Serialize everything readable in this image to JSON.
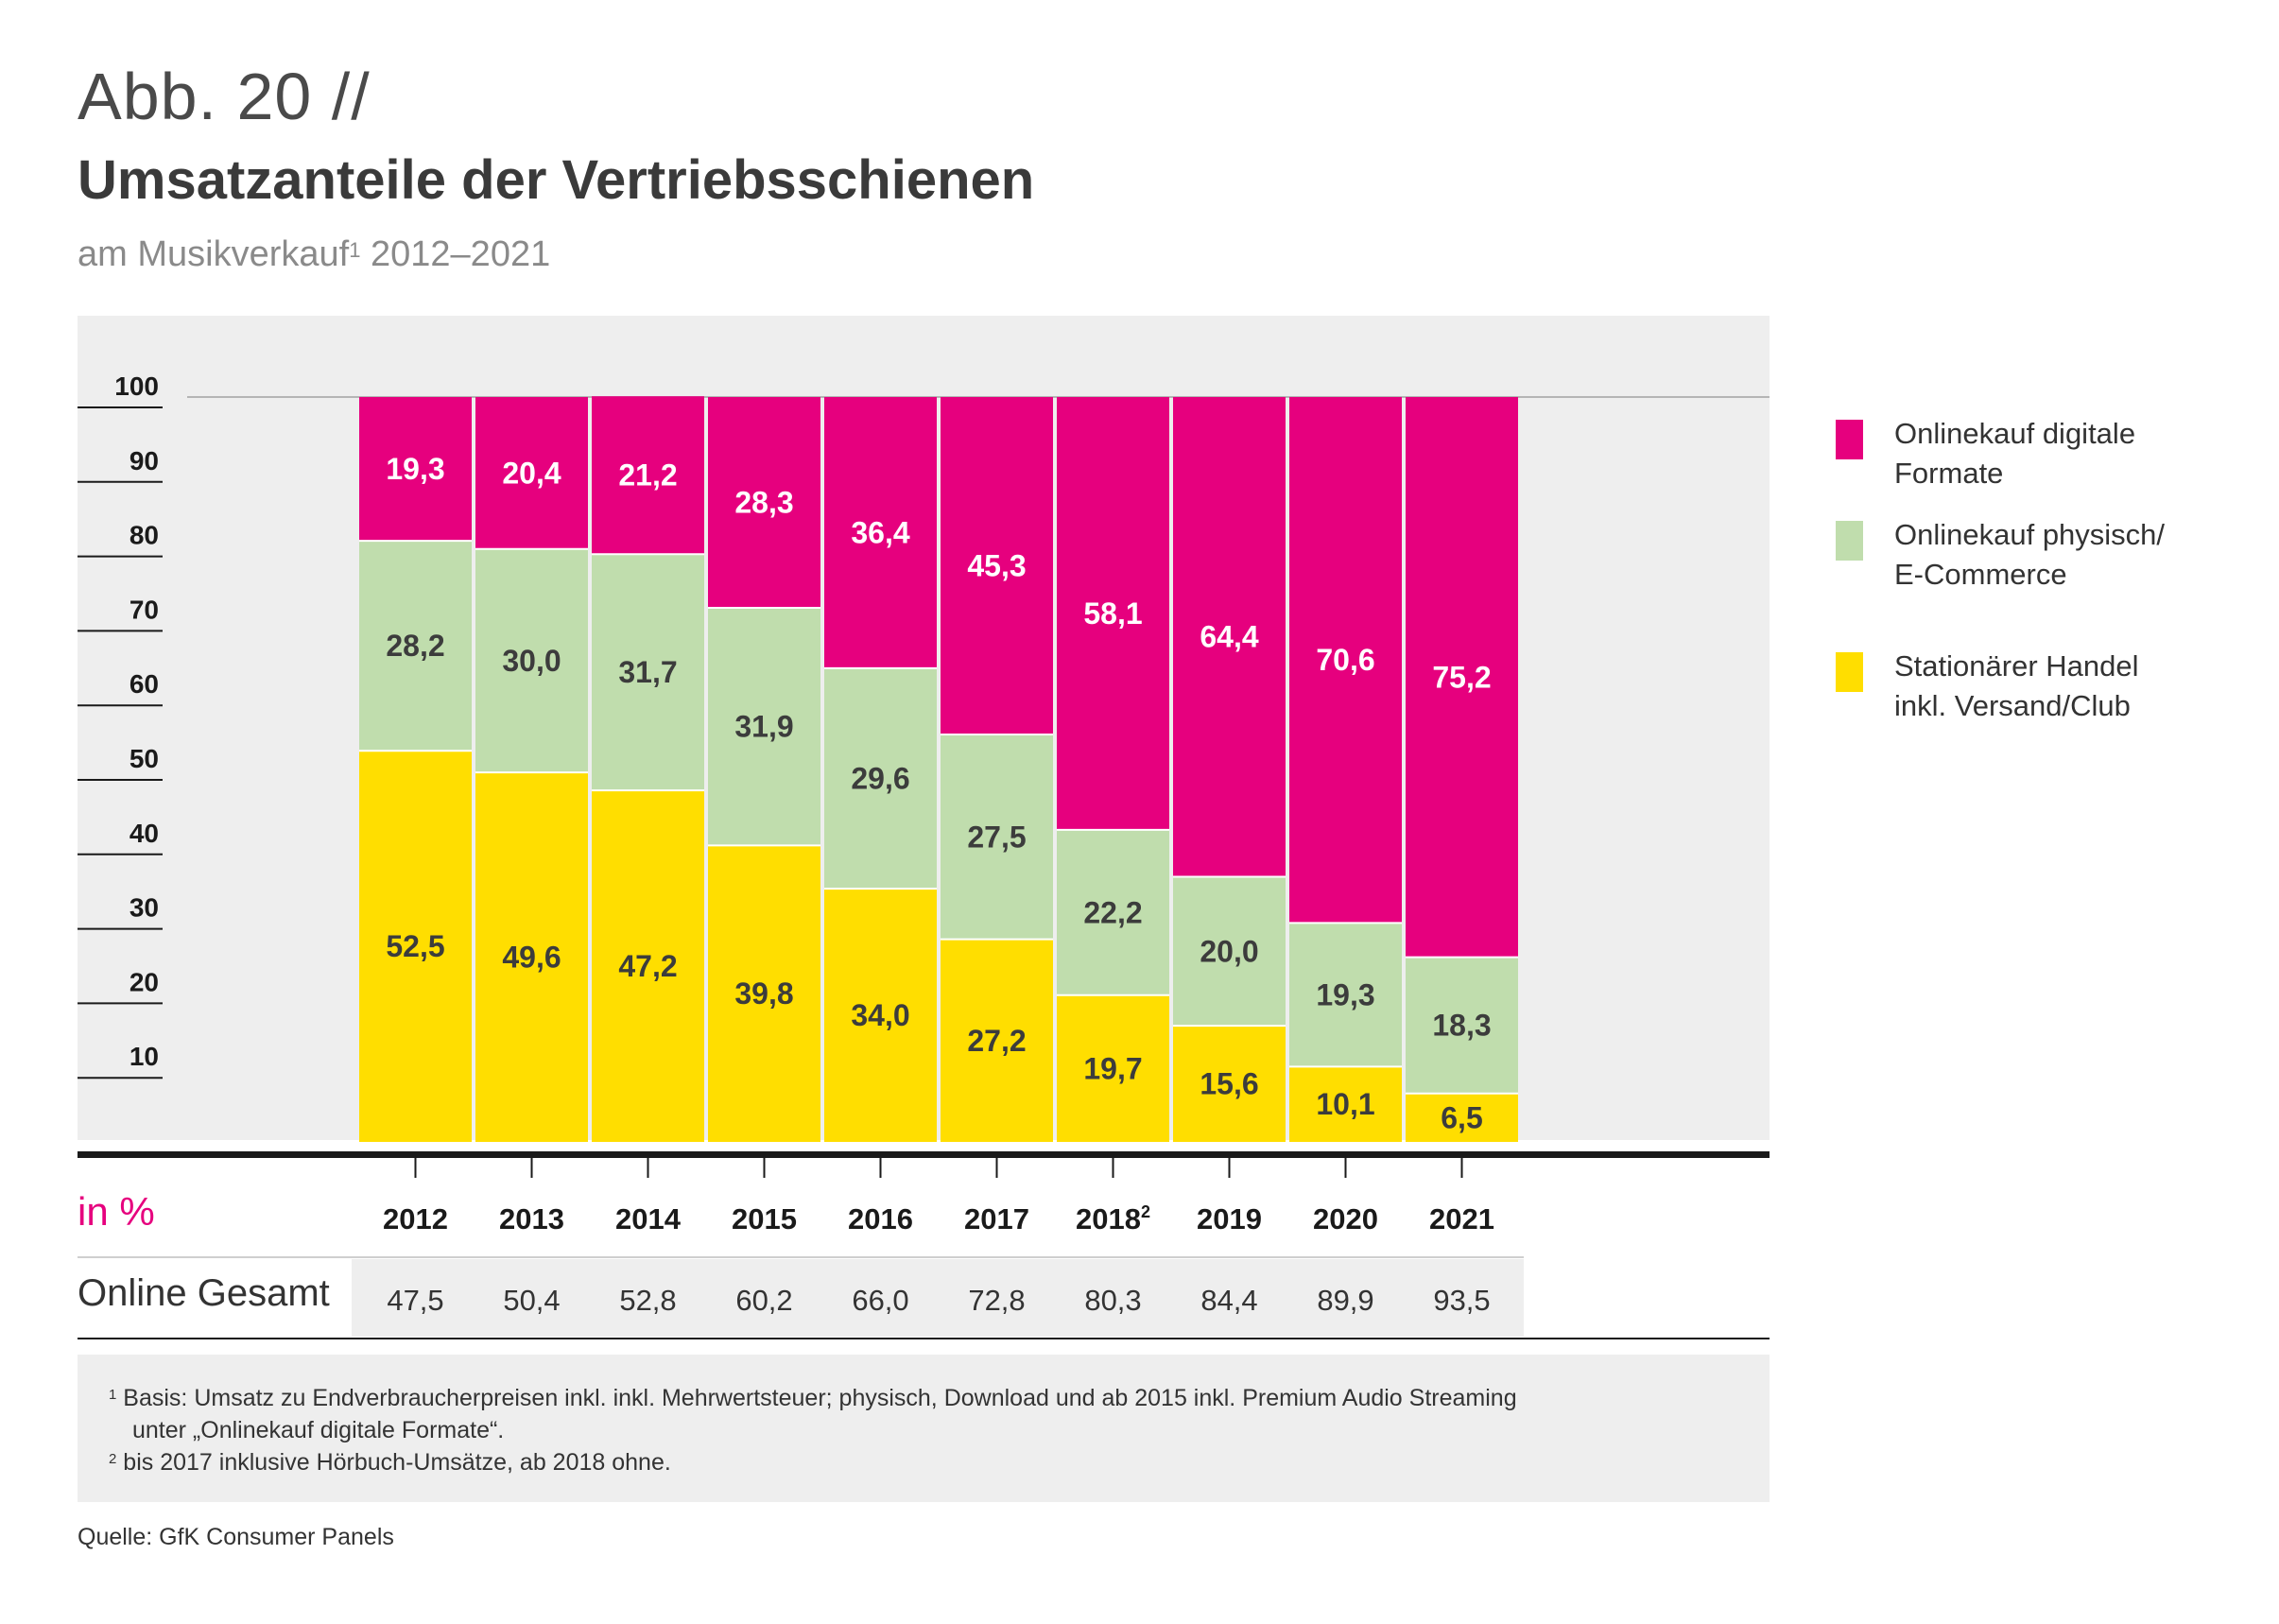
{
  "header": {
    "figure_number": "Abb. 20 //",
    "title": "Umsatzanteile der Vertriebsschienen",
    "subtitle_text": "am Musikverkauf",
    "subtitle_sup": "1",
    "subtitle_years": " 2012–2021"
  },
  "legend": [
    {
      "label": "Onlinekauf digitale Formate",
      "color": "#e6007e"
    },
    {
      "label": "Onlinekauf physisch/\nE-Commerce",
      "color": "#c0ddad"
    },
    {
      "label": "Stationärer Handel\ninkl. Versand/Club",
      "color": "#ffde00"
    }
  ],
  "table": {
    "unit_label": "in %",
    "row_label": "Online Gesamt",
    "online_total": [
      "47,5",
      "50,4",
      "52,8",
      "60,2",
      "66,0",
      "72,8",
      "80,3",
      "84,4",
      "89,9",
      "93,5"
    ]
  },
  "footnotes": {
    "fn1_marker": "1",
    "fn1_line1": "Basis: Umsatz zu Endverbraucherpreisen inkl. inkl. Mehrwertsteuer; physisch, Download und ab 2015 inkl. Premium Audio Streaming",
    "fn1_line2": "unter „Onlinekauf digitale Formate“.",
    "fn2_marker": "2",
    "fn2_line1": "bis 2017 inklusive Hörbuch-Umsätze, ab 2018 ohne."
  },
  "source": "Quelle: GfK Consumer Panels",
  "chart_data": {
    "type": "bar",
    "stacked": true,
    "categories": [
      "2012",
      "2013",
      "2014",
      "2015",
      "2016",
      "2017",
      "2018",
      "2019",
      "2020",
      "2021"
    ],
    "category_superscripts": [
      "",
      "",
      "",
      "",
      "",
      "",
      "2",
      "",
      "",
      ""
    ],
    "series": [
      {
        "name": "Stationärer Handel inkl. Versand/Club",
        "color": "#ffde00",
        "text_color": "#3c3c3c",
        "values": [
          52.5,
          49.6,
          47.2,
          39.8,
          34.0,
          27.2,
          19.7,
          15.6,
          10.1,
          6.5
        ],
        "labels": [
          "52,5",
          "49,6",
          "47,2",
          "39,8",
          "34,0",
          "27,2",
          "19,7",
          "15,6",
          "10,1",
          "6,5"
        ]
      },
      {
        "name": "Onlinekauf physisch/E-Commerce",
        "color": "#c0ddad",
        "text_color": "#3c3c3c",
        "values": [
          28.2,
          30.0,
          31.7,
          31.9,
          29.6,
          27.5,
          22.2,
          20.0,
          19.3,
          18.3
        ],
        "labels": [
          "28,2",
          "30,0",
          "31,7",
          "31,9",
          "29,6",
          "27,5",
          "22,2",
          "20,0",
          "19,3",
          "18,3"
        ]
      },
      {
        "name": "Onlinekauf digitale Formate",
        "color": "#e6007e",
        "text_color": "#ffffff",
        "values": [
          19.3,
          20.4,
          21.2,
          28.3,
          36.4,
          45.3,
          58.1,
          64.4,
          70.6,
          75.2
        ],
        "labels": [
          "19,3",
          "20,4",
          "21,2",
          "28,3",
          "36,4",
          "45,3",
          "58,1",
          "64,4",
          "70,6",
          "75,2"
        ]
      }
    ],
    "yticks": [
      10,
      20,
      30,
      40,
      50,
      60,
      70,
      80,
      90,
      100
    ],
    "ylim": [
      0,
      100
    ],
    "ylabel": "in %"
  }
}
